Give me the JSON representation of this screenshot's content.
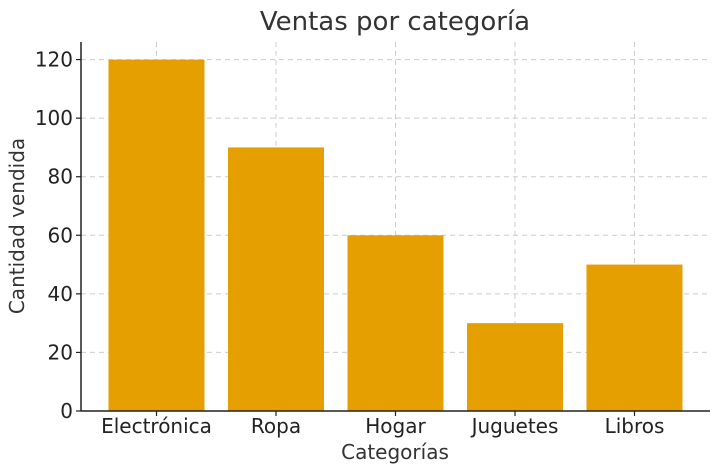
{
  "chart_data": {
    "type": "bar",
    "title": "Ventas por categoría",
    "xlabel": "Categorías",
    "ylabel": "Cantidad vendida",
    "categories": [
      "Electrónica",
      "Ropa",
      "Hogar",
      "Juguetes",
      "Libros"
    ],
    "values": [
      120,
      90,
      60,
      30,
      50
    ],
    "ylim": [
      0,
      126
    ],
    "yticks": [
      0,
      20,
      40,
      60,
      80,
      100,
      120
    ],
    "grid": true,
    "bar_color": "#E69F00"
  }
}
